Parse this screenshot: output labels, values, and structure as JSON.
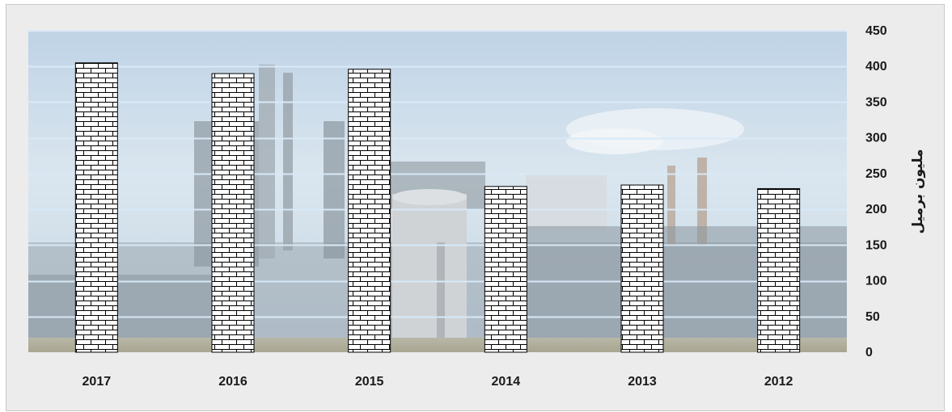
{
  "chart_data": {
    "type": "bar",
    "categories": [
      "2017",
      "2016",
      "2015",
      "2014",
      "2013",
      "2012"
    ],
    "series": [
      {
        "values": [
          405,
          390,
          396,
          232,
          234,
          229
        ]
      }
    ],
    "title": "",
    "xlabel": "",
    "ylabel": "مليون برميل",
    "ylim": [
      0,
      450
    ],
    "yticks": [
      0,
      50,
      100,
      150,
      200,
      250,
      300,
      350,
      400,
      450
    ],
    "y_axis_side": "right",
    "grid": true,
    "legend": "none",
    "colors": {
      "gridline": "#d8e9f7",
      "bar_fill": "#ffffff",
      "bar_pattern": "#000000",
      "frame": "#c8c8c8",
      "frame_fill": "#ececec"
    }
  }
}
